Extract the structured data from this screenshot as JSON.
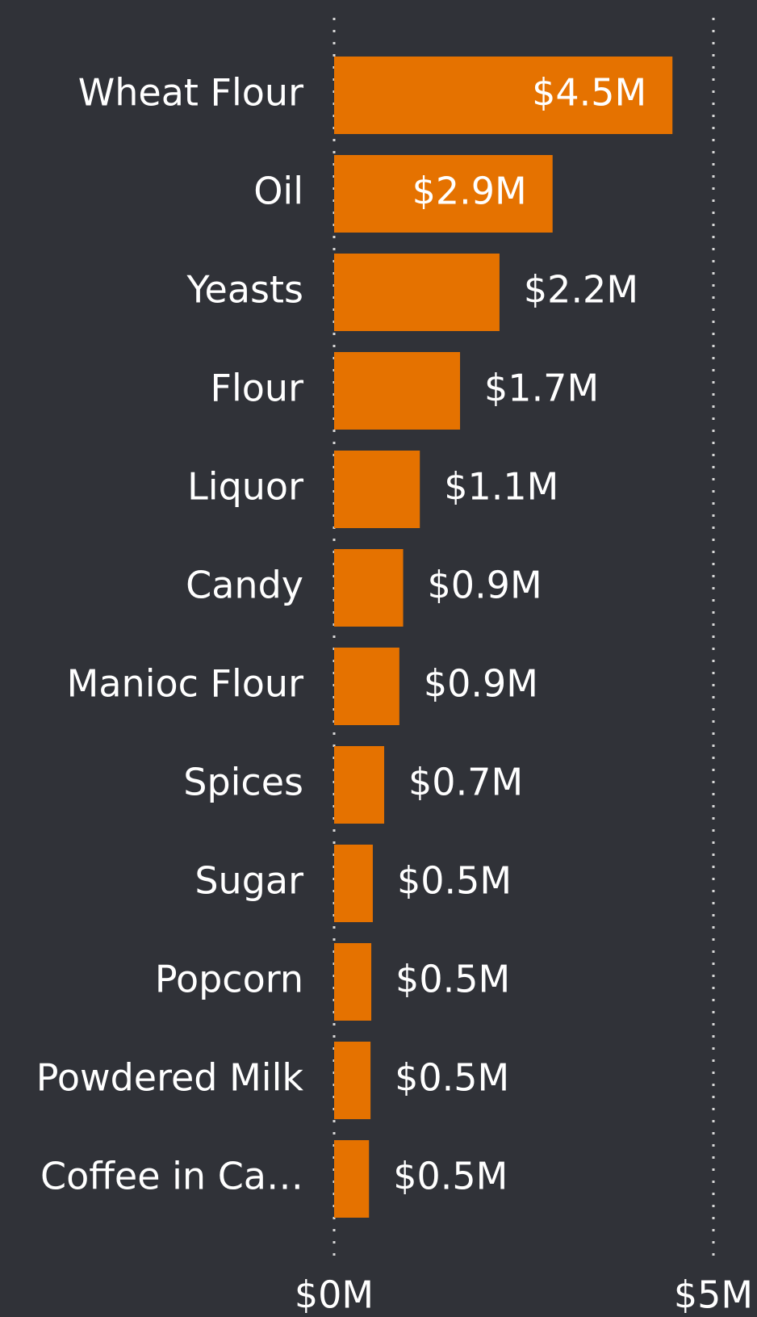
{
  "chart_data": {
    "type": "bar",
    "orientation": "horizontal",
    "categories": [
      "Wheat Flour",
      "Oil",
      "Yeasts",
      "Flour",
      "Liquor",
      "Candy",
      "Manioc Flour",
      "Spices",
      "Sugar",
      "Popcorn",
      "Powdered Milk",
      "Coffee in Ca…"
    ],
    "values": [
      4.46,
      2.88,
      2.18,
      1.66,
      1.13,
      0.91,
      0.86,
      0.66,
      0.51,
      0.49,
      0.48,
      0.46
    ],
    "value_labels": [
      "$4.5M",
      "$2.9M",
      "$2.2M",
      "$1.7M",
      "$1.1M",
      "$0.9M",
      "$0.9M",
      "$0.7M",
      "$0.5M",
      "$0.5M",
      "$0.5M",
      "$0.5M"
    ],
    "color": "#e57200",
    "xlim": [
      0,
      5
    ],
    "xticks": [
      {
        "value": 0,
        "label": "$0M"
      },
      {
        "value": 5,
        "label": "$5M"
      }
    ],
    "grid": true
  }
}
